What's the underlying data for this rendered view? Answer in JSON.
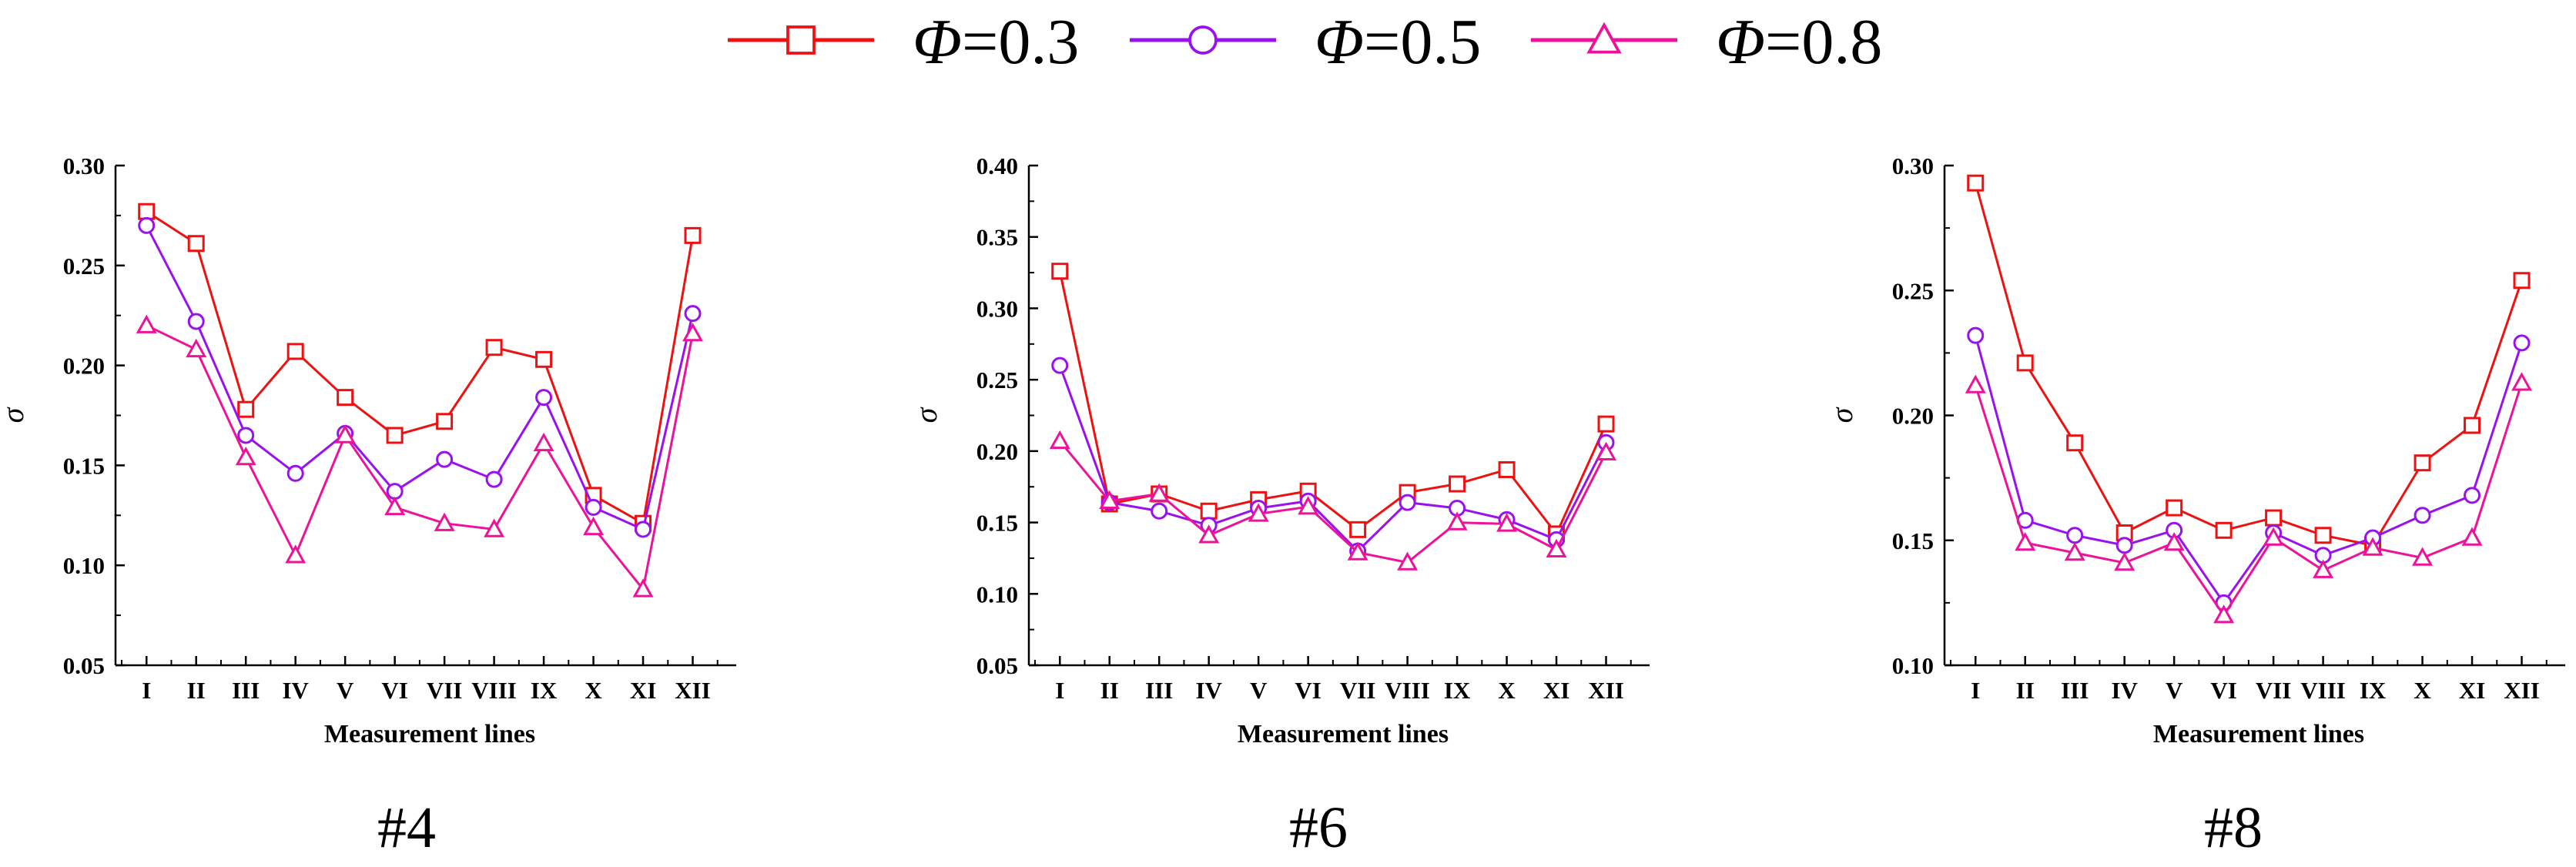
{
  "legend": [
    {
      "symbol": "Φ",
      "label": "=0.3",
      "color": "#ee1111",
      "marker": "square"
    },
    {
      "symbol": "Φ",
      "label": "=0.5",
      "color": "#9911ee",
      "marker": "circle"
    },
    {
      "symbol": "Φ",
      "label": "=0.8",
      "color": "#ee1199",
      "marker": "triangle"
    }
  ],
  "chart_data": [
    {
      "type": "line",
      "title": "#4",
      "xlabel": "Measurement lines",
      "ylabel": "σ",
      "ylim": [
        0.05,
        0.3
      ],
      "yticks": [
        "0.05",
        "0.10",
        "0.15",
        "0.20",
        "0.25",
        "0.30"
      ],
      "categories": [
        "I",
        "II",
        "III",
        "IV",
        "V",
        "VI",
        "VII",
        "VIII",
        "IX",
        "X",
        "XI",
        "XII"
      ],
      "series": [
        {
          "name": "Φ=0.3",
          "values": [
            0.277,
            0.261,
            0.178,
            0.207,
            0.184,
            0.165,
            0.172,
            0.209,
            0.203,
            0.135,
            0.121,
            0.265
          ]
        },
        {
          "name": "Φ=0.5",
          "values": [
            0.27,
            0.222,
            0.165,
            0.146,
            0.166,
            0.137,
            0.153,
            0.143,
            0.184,
            0.129,
            0.118,
            0.226
          ]
        },
        {
          "name": "Φ=0.8",
          "values": [
            0.22,
            0.208,
            0.154,
            0.105,
            0.165,
            0.129,
            0.121,
            0.118,
            0.161,
            0.119,
            0.088,
            0.216
          ]
        }
      ]
    },
    {
      "type": "line",
      "title": "#6",
      "xlabel": "Measurement lines",
      "ylabel": "σ",
      "ylim": [
        0.05,
        0.4
      ],
      "yticks": [
        "0.05",
        "0.10",
        "0.15",
        "0.20",
        "0.25",
        "0.30",
        "0.35",
        "0.40"
      ],
      "categories": [
        "I",
        "II",
        "III",
        "IV",
        "V",
        "VI",
        "VII",
        "VIII",
        "IX",
        "X",
        "XI",
        "XII"
      ],
      "series": [
        {
          "name": "Φ=0.3",
          "values": [
            0.326,
            0.163,
            0.17,
            0.158,
            0.166,
            0.172,
            0.145,
            0.171,
            0.177,
            0.187,
            0.142,
            0.219
          ]
        },
        {
          "name": "Φ=0.5",
          "values": [
            0.26,
            0.164,
            0.158,
            0.148,
            0.16,
            0.165,
            0.13,
            0.164,
            0.16,
            0.152,
            0.138,
            0.206
          ]
        },
        {
          "name": "Φ=0.8",
          "values": [
            0.207,
            0.165,
            0.17,
            0.141,
            0.156,
            0.161,
            0.129,
            0.122,
            0.15,
            0.149,
            0.131,
            0.199
          ]
        }
      ]
    },
    {
      "type": "line",
      "title": "#8",
      "xlabel": "Measurement lines",
      "ylabel": "σ",
      "ylim": [
        0.1,
        0.3
      ],
      "yticks": [
        "0.10",
        "0.15",
        "0.20",
        "0.25",
        "0.30"
      ],
      "categories": [
        "I",
        "II",
        "III",
        "IV",
        "V",
        "VI",
        "VII",
        "VIII",
        "IX",
        "X",
        "XI",
        "XII"
      ],
      "series": [
        {
          "name": "Φ=0.3",
          "values": [
            0.293,
            0.221,
            0.189,
            0.153,
            0.163,
            0.154,
            0.159,
            0.152,
            0.148,
            0.181,
            0.196,
            0.254
          ]
        },
        {
          "name": "Φ=0.5",
          "values": [
            0.232,
            0.158,
            0.152,
            0.148,
            0.154,
            0.125,
            0.153,
            0.144,
            0.151,
            0.16,
            0.168,
            0.229
          ]
        },
        {
          "name": "Φ=0.8",
          "values": [
            0.212,
            0.149,
            0.145,
            0.141,
            0.149,
            0.12,
            0.151,
            0.138,
            0.147,
            0.143,
            0.151,
            0.213
          ]
        }
      ]
    }
  ]
}
